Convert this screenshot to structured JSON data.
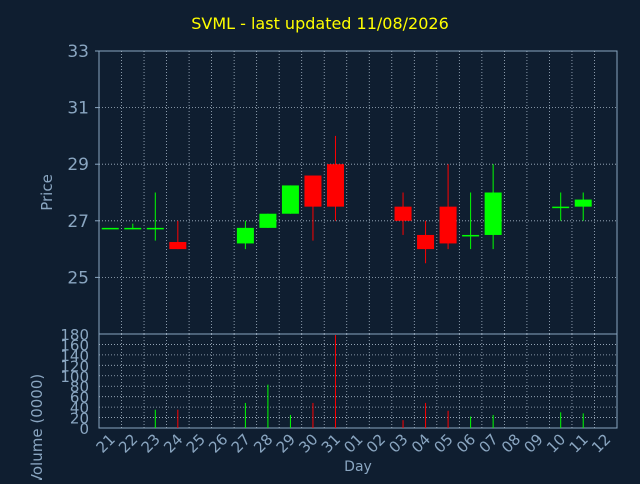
{
  "title": "SVML - last updated 11/08/2026",
  "colors": {
    "background": "#0f1e30",
    "axis": "#8aa6c1",
    "grid": "#a8b8c8",
    "title": "#ffff00",
    "up": "#00ff00",
    "down": "#ff0000"
  },
  "chart_data": [
    {
      "type": "candlestick",
      "ylabel": "Price",
      "ylim": [
        23,
        33
      ],
      "yticks": [
        25,
        27,
        29,
        31,
        33
      ],
      "grid": true,
      "categories": [
        "21",
        "22",
        "23",
        "24",
        "25",
        "26",
        "27",
        "28",
        "29",
        "30",
        "31",
        "01",
        "02",
        "03",
        "04",
        "05",
        "06",
        "07",
        "08",
        "09",
        "10",
        "11",
        "12"
      ],
      "candles": [
        {
          "x": "21",
          "open": 26.75,
          "high": 26.75,
          "low": 26.75,
          "close": 26.75
        },
        {
          "x": "22",
          "open": 26.75,
          "high": 26.9,
          "low": 26.7,
          "close": 26.75
        },
        {
          "x": "23",
          "open": 26.75,
          "high": 28.0,
          "low": 26.3,
          "close": 26.75
        },
        {
          "x": "24",
          "open": 26.25,
          "high": 27.0,
          "low": 26.0,
          "close": 26.0
        },
        {
          "x": "27",
          "open": 26.2,
          "high": 27.0,
          "low": 26.0,
          "close": 26.75
        },
        {
          "x": "28",
          "open": 26.75,
          "high": 27.25,
          "low": 26.75,
          "close": 27.25
        },
        {
          "x": "29",
          "open": 27.25,
          "high": 28.25,
          "low": 27.25,
          "close": 28.25
        },
        {
          "x": "30",
          "open": 28.6,
          "high": 28.6,
          "low": 26.3,
          "close": 27.5
        },
        {
          "x": "31",
          "open": 29.0,
          "high": 30.0,
          "low": 27.0,
          "close": 27.5
        },
        {
          "x": "03",
          "open": 27.5,
          "high": 28.0,
          "low": 26.5,
          "close": 27.0
        },
        {
          "x": "04",
          "open": 26.5,
          "high": 27.0,
          "low": 25.5,
          "close": 26.0
        },
        {
          "x": "05",
          "open": 27.5,
          "high": 29.0,
          "low": 26.0,
          "close": 26.2
        },
        {
          "x": "06",
          "open": 26.45,
          "high": 28.0,
          "low": 26.0,
          "close": 26.5
        },
        {
          "x": "07",
          "open": 26.5,
          "high": 29.0,
          "low": 26.0,
          "close": 28.0
        },
        {
          "x": "10",
          "open": 27.5,
          "high": 28.0,
          "low": 27.0,
          "close": 27.5
        },
        {
          "x": "11",
          "open": 27.5,
          "high": 28.0,
          "low": 27.0,
          "close": 27.75
        }
      ]
    },
    {
      "type": "bar",
      "xlabel": "Day",
      "ylabel": "Volume (0000)",
      "ylim": [
        0,
        180
      ],
      "yticks": [
        0,
        20,
        40,
        60,
        80,
        100,
        120,
        140,
        160,
        180
      ],
      "grid": true,
      "categories": [
        "21",
        "22",
        "23",
        "24",
        "25",
        "26",
        "27",
        "28",
        "29",
        "30",
        "31",
        "01",
        "02",
        "03",
        "04",
        "05",
        "06",
        "07",
        "08",
        "09",
        "10",
        "11",
        "12"
      ],
      "bars": [
        {
          "x": "23",
          "value": 35,
          "dir": "up"
        },
        {
          "x": "24",
          "value": 35,
          "dir": "down"
        },
        {
          "x": "27",
          "value": 48,
          "dir": "up"
        },
        {
          "x": "28",
          "value": 83,
          "dir": "up"
        },
        {
          "x": "29",
          "value": 25,
          "dir": "up"
        },
        {
          "x": "30",
          "value": 48,
          "dir": "down"
        },
        {
          "x": "31",
          "value": 178,
          "dir": "down"
        },
        {
          "x": "03",
          "value": 15,
          "dir": "down"
        },
        {
          "x": "04",
          "value": 48,
          "dir": "down"
        },
        {
          "x": "05",
          "value": 33,
          "dir": "down"
        },
        {
          "x": "06",
          "value": 22,
          "dir": "up"
        },
        {
          "x": "07",
          "value": 25,
          "dir": "up"
        },
        {
          "x": "10",
          "value": 30,
          "dir": "up"
        },
        {
          "x": "11",
          "value": 28,
          "dir": "up"
        }
      ]
    }
  ]
}
